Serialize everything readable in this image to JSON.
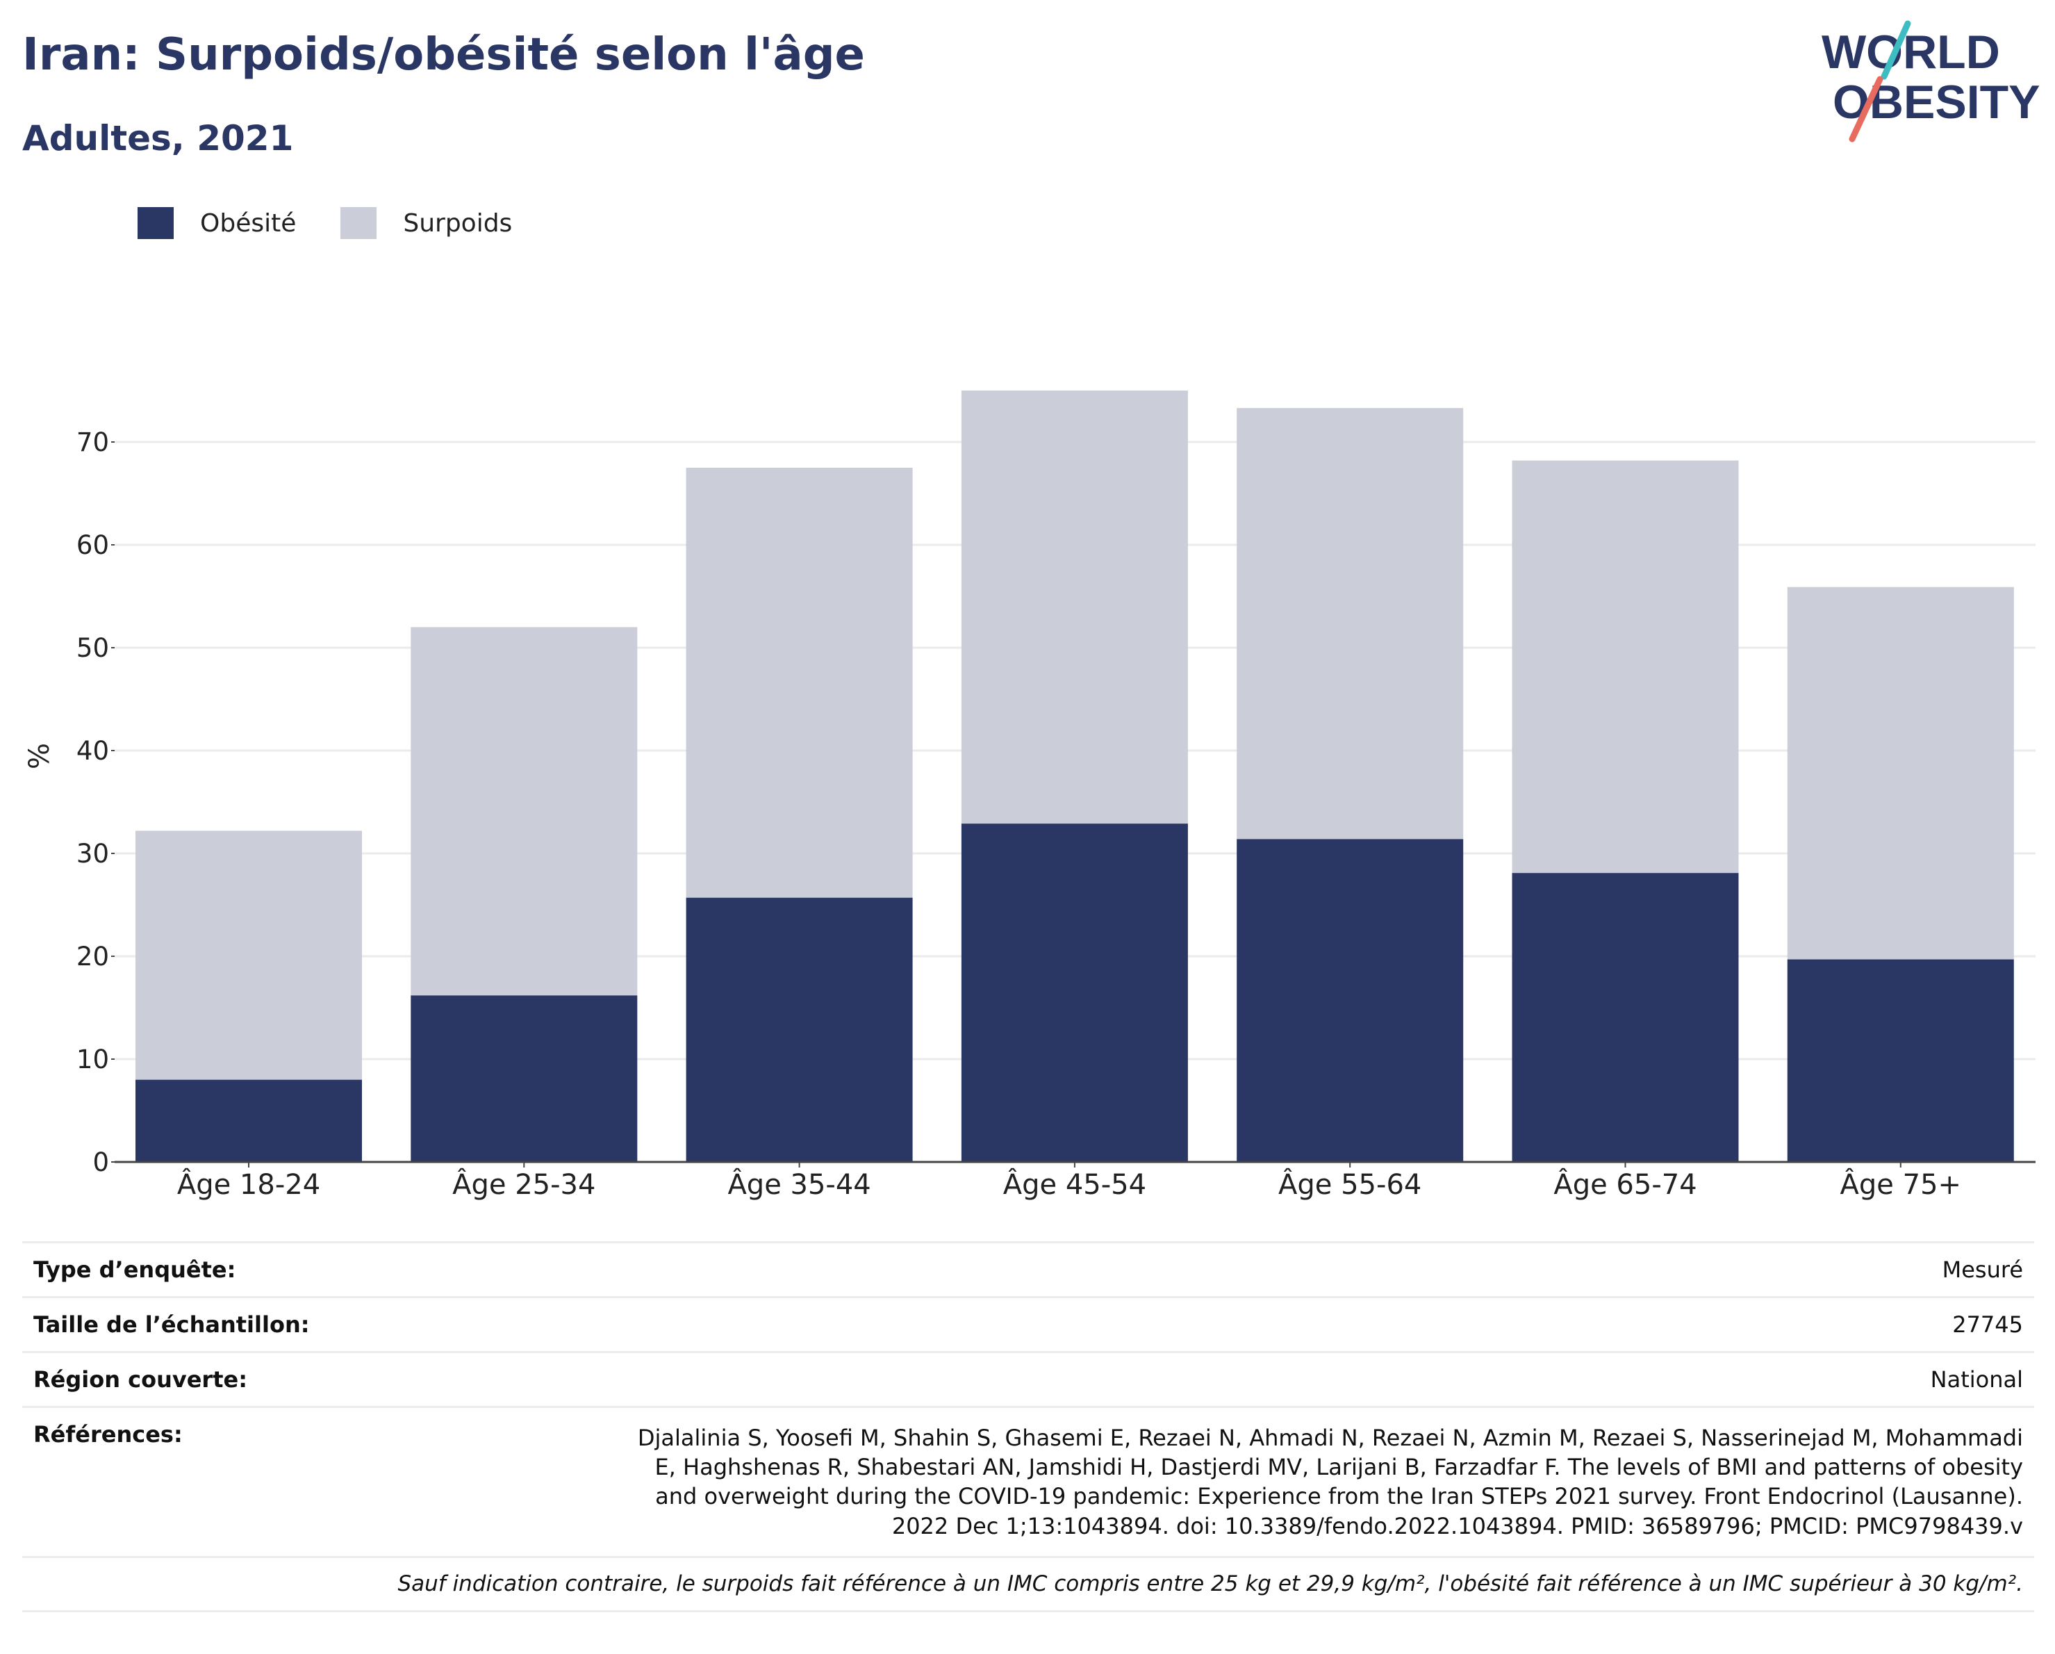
{
  "header": {
    "title": "Iran: Surpoids/obésité selon l'âge",
    "subtitle": "Adultes, 2021"
  },
  "logo": {
    "line1": "WORLD",
    "line2": "OBESITY",
    "icon": "world-obesity-logo"
  },
  "colors": {
    "obesity": "#2a3764",
    "overweight": "#cbcdd8",
    "accent_teal": "#3dbcc2",
    "accent_coral": "#e86b5f"
  },
  "chart_data": {
    "type": "bar",
    "stacked": true,
    "categories": [
      "Âge 18-24",
      "Âge 25-34",
      "Âge 35-44",
      "Âge 45-54",
      "Âge 55-64",
      "Âge 65-74",
      "Âge 75+"
    ],
    "series": [
      {
        "name": "Obésité",
        "color": "#2a3764",
        "values": [
          8.0,
          16.2,
          25.7,
          32.9,
          31.4,
          28.1,
          19.7
        ]
      },
      {
        "name": "Surpoids",
        "color": "#cbcdd8",
        "values": [
          24.2,
          35.8,
          41.8,
          42.1,
          41.9,
          40.1,
          36.2
        ]
      }
    ],
    "ylabel": "%",
    "xlabel": "",
    "ylim": [
      0,
      80
    ],
    "yticks": [
      0,
      10,
      20,
      30,
      40,
      50,
      60,
      70
    ],
    "grid": true,
    "legend": "top-left"
  },
  "meta": {
    "survey_type": {
      "label": "Type d’enquête:",
      "value": "Mesuré"
    },
    "sample_size": {
      "label": "Taille de l’échantillon:",
      "value": "27745"
    },
    "region": {
      "label": "Région couverte:",
      "value": "National"
    },
    "references": {
      "label": "Références:",
      "value": "Djalalinia S, Yoosefi M, Shahin S, Ghasemi E, Rezaei N, Ahmadi N, Rezaei N, Azmin M, Rezaei S, Nasserinejad M, Mohammadi E, Haghshenas R, Shabestari AN, Jamshidi H, Dastjerdi MV, Larijani B, Farzadfar F. The levels of BMI and patterns of obesity and overweight during the COVID-19 pandemic: Experience from the Iran STEPs 2021 survey. Front Endocrinol (Lausanne). 2022 Dec 1;13:1043894. doi: 10.3389/fendo.2022.1043894. PMID: 36589796; PMCID: PMC9798439.v"
    },
    "note": "Sauf indication contraire, le surpoids fait référence à un IMC compris entre 25 kg et 29,9 kg/m², l'obésité fait référence à un IMC supérieur à 30 kg/m²."
  }
}
